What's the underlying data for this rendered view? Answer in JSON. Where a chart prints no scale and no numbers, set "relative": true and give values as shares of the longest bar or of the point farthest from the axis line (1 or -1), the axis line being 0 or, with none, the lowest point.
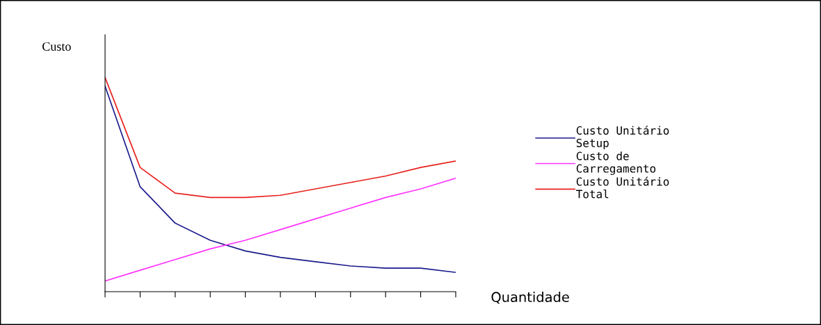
{
  "chart_data": {
    "type": "line",
    "relative": true,
    "xlabel": "Quantidade",
    "ylabel": "Custo",
    "categories": [
      null,
      null,
      null,
      null,
      null,
      null,
      null,
      null,
      null,
      null,
      null
    ],
    "series": [
      {
        "name": "Custo Unitário\nSetup",
        "color": "#1a1a8c",
        "values": [
          0.96,
          0.49,
          0.32,
          0.24,
          0.19,
          0.16,
          0.14,
          0.12,
          0.11,
          0.11,
          0.09
        ]
      },
      {
        "name": "Custo de\nCarregamento",
        "color": "#ff33ff",
        "values": [
          0.05,
          0.1,
          0.15,
          0.2,
          0.24,
          0.29,
          0.34,
          0.39,
          0.44,
          0.48,
          0.53
        ]
      },
      {
        "name": "Custo Unitário\nTotal",
        "color": "#e8201c",
        "values": [
          1.0,
          0.58,
          0.46,
          0.44,
          0.44,
          0.45,
          0.48,
          0.51,
          0.54,
          0.58,
          0.61
        ]
      }
    ],
    "legend": "right",
    "grid": false,
    "marker": "none",
    "line_style": "solid"
  }
}
